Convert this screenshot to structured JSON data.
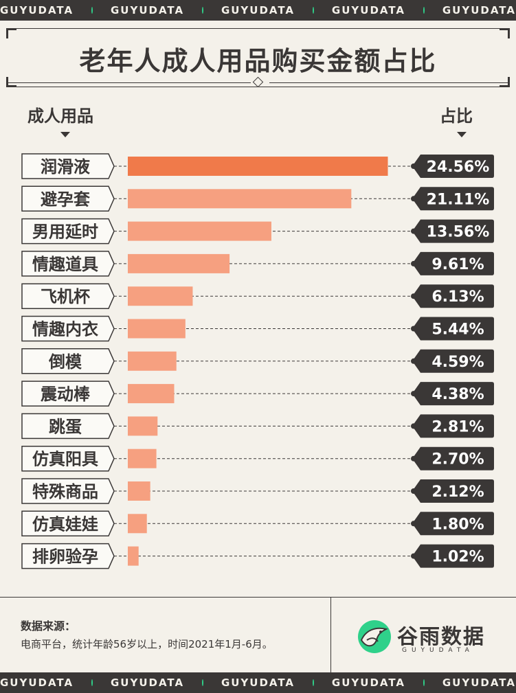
{
  "strip": {
    "text": "GUYUDATA",
    "count": 5
  },
  "title": "老年人成人用品购买金额占比",
  "headers": {
    "left": "成人用品",
    "right": "占比"
  },
  "colors": {
    "top_bar": "#f07a4a",
    "bar": "#f6a080",
    "dark": "#3a3736",
    "bg": "#f4f1ea",
    "accent": "#2fd18a"
  },
  "chart_data": {
    "type": "bar",
    "orientation": "horizontal",
    "title": "老年人成人用品购买金额占比",
    "xlabel": "占比",
    "ylabel": "成人用品",
    "categories": [
      "润滑液",
      "避孕套",
      "男用延时",
      "情趣道具",
      "飞机杯",
      "情趣内衣",
      "倒模",
      "震动棒",
      "跳蛋",
      "仿真阳具",
      "特殊商品",
      "仿真娃娃",
      "排卵验孕"
    ],
    "values": [
      24.56,
      21.11,
      13.56,
      9.61,
      6.13,
      5.44,
      4.59,
      4.38,
      2.81,
      2.7,
      2.12,
      1.8,
      1.02
    ],
    "labels": [
      "24.56%",
      "21.11%",
      "13.56%",
      "9.61%",
      "6.13%",
      "5.44%",
      "4.59%",
      "4.38%",
      "2.81%",
      "2.70%",
      "2.12%",
      "1.80%",
      "1.02%"
    ],
    "unit": "%"
  },
  "footer": {
    "source_label": "数据来源：",
    "source_text": "电商平台，统计年龄56岁以上，时间2021年1月-6月。",
    "logo_cn": "谷雨数据",
    "logo_en": "GUYUDATA",
    "logo_icon": "guyu-bird-icon"
  }
}
